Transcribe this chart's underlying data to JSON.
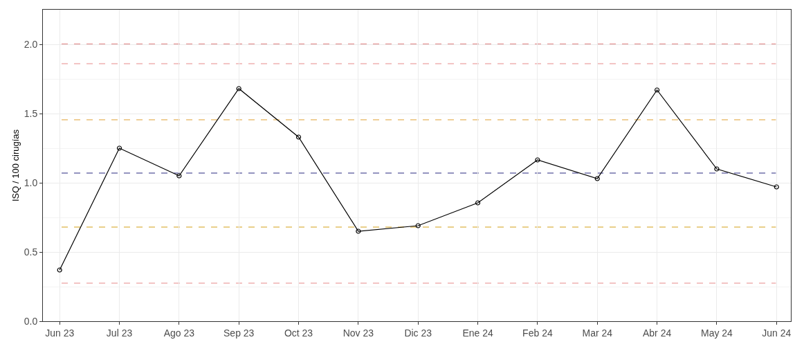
{
  "chart_data": {
    "type": "line",
    "ylabel": "ISQ / 100 cirugías",
    "categories": [
      "Jun 23",
      "Jul 23",
      "Ago 23",
      "Sep 23",
      "Oct 23",
      "Nov 23",
      "Dic 23",
      "Ene 24",
      "Feb 24",
      "Mar 24",
      "Abr 24",
      "May 24",
      "Jun 24"
    ],
    "series": [
      {
        "color": "#000000",
        "values": [
          0.37,
          1.25,
          1.05,
          1.68,
          1.33,
          0.65,
          0.69,
          0.855,
          1.165,
          1.03,
          1.67,
          1.1,
          0.97
        ]
      }
    ],
    "ylim": [
      0,
      2.25
    ],
    "yticks": [
      {
        "value": 0,
        "label": "0.0"
      },
      0.5,
      {
        "value": 1,
        "label": "1.0"
      },
      1.5,
      {
        "value": 2,
        "label": "2.0"
      }
    ],
    "ref_lines": [
      {
        "axis": "y",
        "value": 2.0,
        "color": "#c00000",
        "line_style": "dashed"
      },
      {
        "axis": "y",
        "value": 1.86,
        "color": "#e88a8a",
        "line_style": "dashed"
      },
      {
        "axis": "y",
        "value": 1.455,
        "color": "#e0a030",
        "line_style": "dashed"
      },
      {
        "axis": "y",
        "value": 1.07,
        "color": "#2a2a80",
        "line_style": "dashed"
      },
      {
        "axis": "y",
        "value": 0.68,
        "color": "#d4a017",
        "line_style": "dashed"
      },
      {
        "axis": "y",
        "value": 0.275,
        "color": "#e88a8a",
        "line_style": "dashed"
      }
    ],
    "grid": true,
    "marker": "circle",
    "line_style": "solid"
  }
}
